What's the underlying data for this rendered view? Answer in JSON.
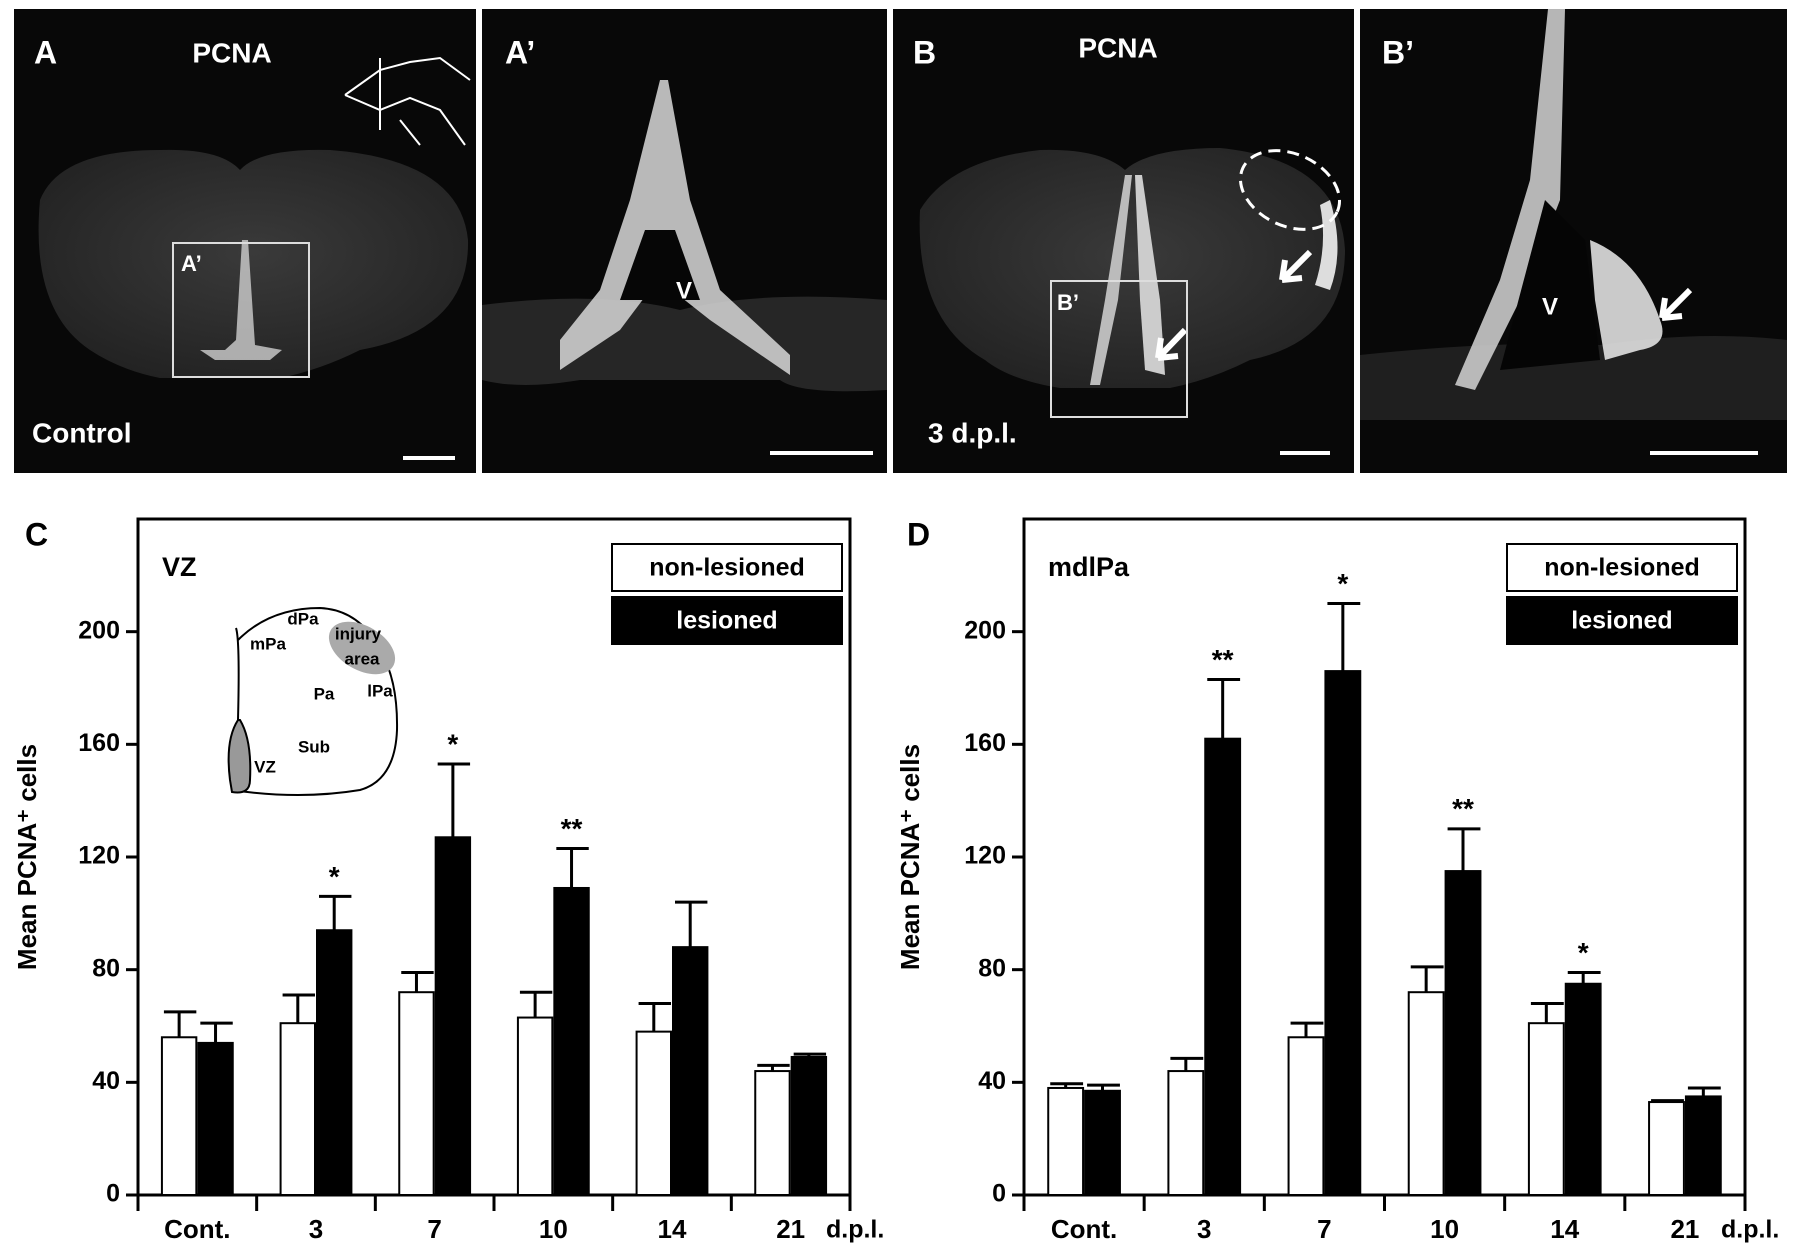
{
  "panels": [
    {
      "letter": "A",
      "stain": "PCNA",
      "condition": "Control",
      "box_label": "A’"
    },
    {
      "letter": "A’",
      "ventricle": "V"
    },
    {
      "letter": "B",
      "stain": "PCNA",
      "condition": "3 d.p.l.",
      "box_label": "B’"
    },
    {
      "letter": "B’",
      "ventricle": "V"
    }
  ],
  "chart_data": [
    {
      "type": "bar",
      "letter": "C",
      "title": "VZ",
      "ylabel": "Mean PCNA⁺ cells",
      "xlabel": "d.p.l.",
      "categories": [
        "Cont.",
        "3",
        "7",
        "10",
        "14",
        "21"
      ],
      "series": [
        {
          "name": "non-lesioned",
          "color": "#ffffff",
          "values": [
            56,
            61,
            72,
            63,
            58,
            44
          ],
          "errors": [
            9,
            10,
            7,
            9,
            10,
            2
          ]
        },
        {
          "name": "lesioned",
          "color": "#000000",
          "values": [
            54,
            94,
            127,
            109,
            88,
            49
          ],
          "errors": [
            7,
            12,
            26,
            14,
            16,
            1
          ]
        }
      ],
      "annotations": [
        null,
        "*",
        "*",
        "**",
        null,
        null
      ],
      "inset_labels": [
        "dPa",
        "mPa",
        "injury",
        "area",
        "Pa",
        "lPa",
        "Sub",
        "VZ"
      ],
      "ylim": [
        0,
        240
      ],
      "yticks": [
        0,
        40,
        80,
        120,
        160,
        200
      ]
    },
    {
      "type": "bar",
      "letter": "D",
      "title": "mdlPa",
      "ylabel": "Mean PCNA⁺ cells",
      "xlabel": "d.p.l.",
      "categories": [
        "Cont.",
        "3",
        "7",
        "10",
        "14",
        "21"
      ],
      "series": [
        {
          "name": "non-lesioned",
          "color": "#ffffff",
          "values": [
            38,
            44,
            56,
            72,
            61,
            33
          ],
          "errors": [
            1.5,
            4.5,
            5,
            9,
            7,
            0.5
          ]
        },
        {
          "name": "lesioned",
          "color": "#000000",
          "values": [
            37,
            162,
            186,
            115,
            75,
            35
          ],
          "errors": [
            2,
            21,
            24,
            15,
            4,
            3
          ]
        }
      ],
      "annotations": [
        null,
        "**",
        "*",
        "**",
        "*",
        null
      ],
      "ylim": [
        0,
        240
      ],
      "yticks": [
        0,
        40,
        80,
        120,
        160,
        200
      ]
    }
  ]
}
